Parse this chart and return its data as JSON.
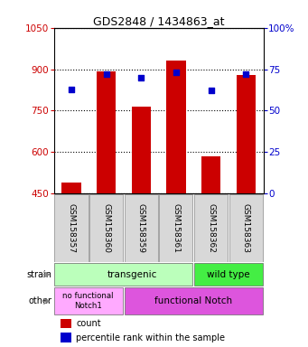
{
  "title": "GDS2848 / 1434863_at",
  "samples": [
    "GSM158357",
    "GSM158360",
    "GSM158359",
    "GSM158361",
    "GSM158362",
    "GSM158363"
  ],
  "bar_values": [
    490,
    893,
    765,
    930,
    583,
    880
  ],
  "bar_base": 450,
  "percentile_values": [
    63,
    72,
    70,
    73,
    62,
    72
  ],
  "bar_color": "#cc0000",
  "dot_color": "#0000cc",
  "ylim_left": [
    450,
    1050
  ],
  "ylim_right": [
    0,
    100
  ],
  "yticks_left": [
    450,
    600,
    750,
    900,
    1050
  ],
  "ytick_labels_left": [
    "450",
    "600",
    "750",
    "900",
    "1050"
  ],
  "yticks_right": [
    0,
    25,
    50,
    75,
    100
  ],
  "ytick_labels_right": [
    "0",
    "25",
    "50",
    "75",
    "100%"
  ],
  "strain_transgenic_color": "#bbffbb",
  "strain_wildtype_color": "#44ee44",
  "other_nofunc_color": "#ffaaff",
  "other_func_color": "#dd55dd",
  "legend_count_color": "#cc0000",
  "legend_pct_color": "#0000cc",
  "axis_color_left": "#cc0000",
  "axis_color_right": "#0000cc",
  "bg_color": "#ffffff"
}
